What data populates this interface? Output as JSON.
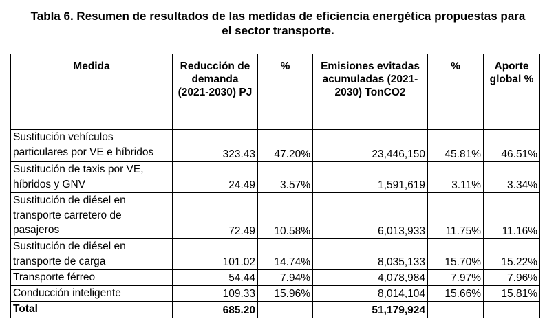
{
  "caption": {
    "line1": "Tabla 6. Resumen de resultados de las medidas de eficiencia energética propuestas para",
    "line2": "el sector transporte."
  },
  "headers": {
    "measure": "Medida",
    "demand_reduction": "Reducción de demanda (2021-2030) PJ",
    "demand_pct": "%",
    "emissions": "Emisiones evitadas acumuladas (2021-2030) TonCO2",
    "emissions_pct": "%",
    "global_contribution": "Aporte global %"
  },
  "rows": [
    {
      "measure": "Sustitución vehículos\nparticulares por VE e híbridos",
      "demand_reduction": "323.43",
      "demand_pct": "47.20%",
      "emissions": "23,446,150",
      "emissions_pct": "45.81%",
      "global_contribution": "46.51%"
    },
    {
      "measure": "Sustitución de taxis por VE,\nhíbridos y GNV",
      "demand_reduction": "24.49",
      "demand_pct": "3.57%",
      "emissions": "1,591,619",
      "emissions_pct": "3.11%",
      "global_contribution": "3.34%"
    },
    {
      "measure": "Sustitución de diésel en\ntransporte carretero de\npasajeros",
      "demand_reduction": "72.49",
      "demand_pct": "10.58%",
      "emissions": "6,013,933",
      "emissions_pct": "11.75%",
      "global_contribution": "11.16%"
    },
    {
      "measure": "Sustitución de diésel en\ntransporte de carga",
      "demand_reduction": "101.02",
      "demand_pct": "14.74%",
      "emissions": "8,035,133",
      "emissions_pct": "15.70%",
      "global_contribution": "15.22%"
    },
    {
      "measure": "Transporte férreo",
      "demand_reduction": "54.44",
      "demand_pct": "7.94%",
      "emissions": "4,078,984",
      "emissions_pct": "7.97%",
      "global_contribution": "7.96%"
    },
    {
      "measure": "Conducción inteligente",
      "demand_reduction": "109.33",
      "demand_pct": "15.96%",
      "emissions": "8,014,104",
      "emissions_pct": "15.66%",
      "global_contribution": "15.81%"
    }
  ],
  "total": {
    "label": "Total",
    "demand_reduction": "685.20",
    "demand_pct": "",
    "emissions": "51,179,924",
    "emissions_pct": "",
    "global_contribution": ""
  }
}
